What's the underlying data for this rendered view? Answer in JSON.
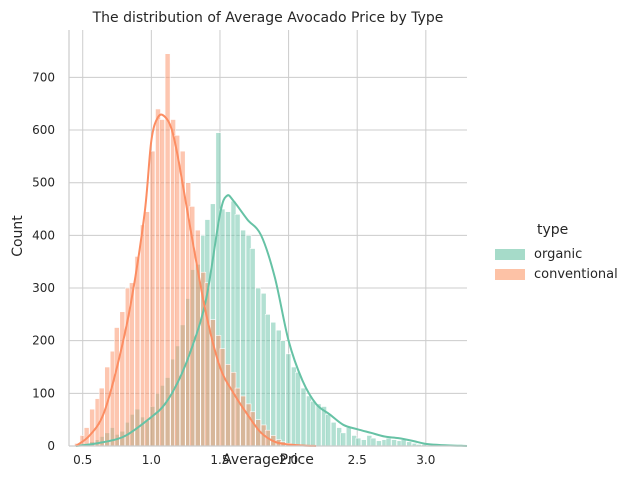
{
  "chart_data": {
    "type": "bar",
    "title": "The distribution of Average Avocado Price by Type",
    "xlabel": "AveragePrice",
    "ylabel": "Count",
    "xlim": [
      0.4,
      3.3
    ],
    "ylim": [
      0,
      790
    ],
    "xticks": [
      0.5,
      1.0,
      1.5,
      2.0,
      2.5,
      3.0
    ],
    "xtick_labels": [
      "0.5",
      "1.0",
      "1.5",
      "2.0",
      "2.5",
      "3.0"
    ],
    "yticks": [
      0,
      100,
      200,
      300,
      400,
      500,
      600,
      700
    ],
    "ytick_labels": [
      "0",
      "100",
      "200",
      "300",
      "400",
      "500",
      "600",
      "700"
    ],
    "grid": true,
    "legend": {
      "title": "type",
      "position": "right"
    },
    "bin_width": 0.0368,
    "series": [
      {
        "name": "organic",
        "color": "#66c2a5",
        "hist": {
          "bin_start": [
            0.44,
            0.48,
            0.51,
            0.55,
            0.59,
            0.62,
            0.66,
            0.7,
            0.73,
            0.77,
            0.81,
            0.84,
            0.88,
            0.92,
            0.95,
            0.99,
            1.03,
            1.06,
            1.1,
            1.14,
            1.17,
            1.21,
            1.25,
            1.28,
            1.32,
            1.36,
            1.39,
            1.43,
            1.47,
            1.5,
            1.54,
            1.58,
            1.61,
            1.65,
            1.69,
            1.72,
            1.76,
            1.8,
            1.83,
            1.87,
            1.91,
            1.94,
            1.98,
            2.02,
            2.05,
            2.09,
            2.13,
            2.16,
            2.2,
            2.24,
            2.27,
            2.31,
            2.35,
            2.38,
            2.42,
            2.46,
            2.49,
            2.53,
            2.57,
            2.6,
            2.64,
            2.68,
            2.71,
            2.75,
            2.79,
            2.82,
            2.86,
            2.9,
            2.93,
            2.97,
            3.01,
            3.04,
            3.08,
            3.12,
            3.15,
            3.19,
            3.23
          ],
          "counts": [
            0,
            2,
            4,
            8,
            12,
            18,
            25,
            35,
            22,
            28,
            45,
            60,
            70,
            55,
            48,
            75,
            100,
            115,
            130,
            165,
            190,
            230,
            280,
            335,
            345,
            400,
            430,
            460,
            595,
            450,
            445,
            465,
            440,
            410,
            400,
            375,
            300,
            290,
            250,
            235,
            220,
            200,
            175,
            150,
            140,
            110,
            95,
            85,
            80,
            75,
            60,
            45,
            35,
            25,
            35,
            20,
            15,
            12,
            20,
            15,
            10,
            12,
            15,
            12,
            10,
            12,
            8,
            5,
            3,
            3,
            2,
            1,
            1,
            1,
            0,
            0,
            0
          ]
        },
        "kde": {
          "x": [
            0.45,
            0.6,
            0.8,
            1.0,
            1.1,
            1.2,
            1.3,
            1.4,
            1.5,
            1.55,
            1.6,
            1.7,
            1.8,
            1.9,
            2.0,
            2.1,
            2.2,
            2.3,
            2.4,
            2.5,
            2.6,
            2.7,
            2.8,
            2.9,
            3.0,
            3.1,
            3.3
          ],
          "y": [
            0,
            5,
            18,
            55,
            80,
            125,
            190,
            280,
            440,
            475,
            465,
            430,
            400,
            320,
            200,
            125,
            80,
            60,
            40,
            32,
            25,
            18,
            15,
            10,
            4,
            2,
            0
          ]
        }
      },
      {
        "name": "conventional",
        "color": "#fc8d62",
        "hist": {
          "bin_start": [
            0.44,
            0.48,
            0.51,
            0.55,
            0.59,
            0.62,
            0.66,
            0.7,
            0.73,
            0.77,
            0.81,
            0.84,
            0.88,
            0.92,
            0.95,
            0.99,
            1.03,
            1.06,
            1.1,
            1.14,
            1.17,
            1.21,
            1.25,
            1.28,
            1.32,
            1.36,
            1.39,
            1.43,
            1.47,
            1.5,
            1.54,
            1.58,
            1.61,
            1.65,
            1.69,
            1.72,
            1.76,
            1.8,
            1.83,
            1.87,
            1.91,
            1.94,
            1.98,
            2.02,
            2.05,
            2.09,
            2.13,
            2.16,
            2.2,
            2.24
          ],
          "counts": [
            5,
            20,
            35,
            70,
            90,
            110,
            150,
            180,
            225,
            255,
            300,
            310,
            360,
            420,
            445,
            560,
            640,
            620,
            745,
            620,
            590,
            560,
            500,
            455,
            410,
            330,
            310,
            240,
            210,
            185,
            155,
            140,
            110,
            95,
            80,
            65,
            50,
            40,
            30,
            20,
            12,
            8,
            5,
            3,
            2,
            1,
            1,
            0,
            0,
            0
          ]
        },
        "kde": {
          "x": [
            0.45,
            0.55,
            0.65,
            0.75,
            0.85,
            0.95,
            1.0,
            1.05,
            1.1,
            1.15,
            1.2,
            1.3,
            1.4,
            1.5,
            1.6,
            1.7,
            1.8,
            1.9,
            2.0,
            2.1,
            2.2
          ],
          "y": [
            0,
            20,
            60,
            150,
            270,
            440,
            580,
            625,
            625,
            600,
            540,
            390,
            250,
            150,
            100,
            60,
            25,
            8,
            3,
            1,
            0
          ]
        }
      }
    ]
  }
}
